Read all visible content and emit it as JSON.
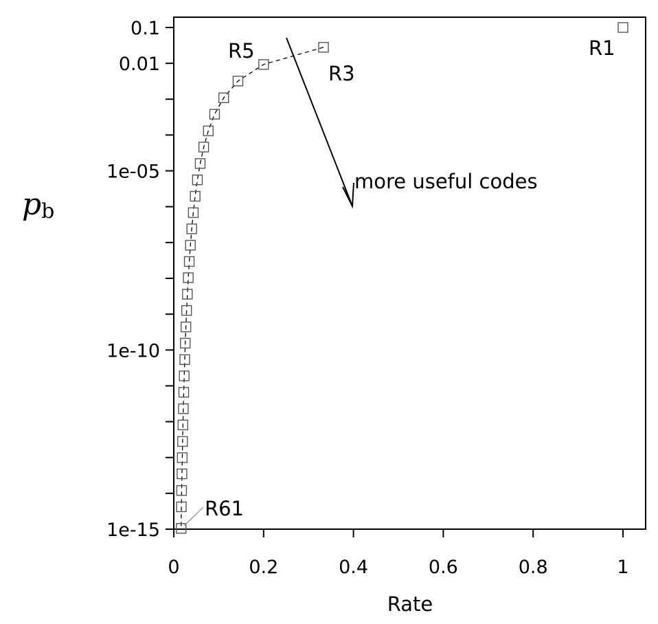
{
  "chart_data": {
    "type": "scatter",
    "xlabel": "Rate",
    "ylabel_main": "p",
    "ylabel_sub": "b",
    "xlim": [
      0,
      1.05
    ],
    "ylim": [
      1e-15,
      0.2
    ],
    "y_scale": "log",
    "grid": false,
    "x_ticks": [
      {
        "value": 0,
        "label": "0"
      },
      {
        "value": 0.2,
        "label": "0.2"
      },
      {
        "value": 0.4,
        "label": "0.4"
      },
      {
        "value": 0.6,
        "label": "0.6"
      },
      {
        "value": 0.8,
        "label": "0.8"
      },
      {
        "value": 1,
        "label": "1"
      }
    ],
    "y_ticks": [
      {
        "value": 0.1,
        "label": "0.1"
      },
      {
        "value": 0.01,
        "label": "0.01"
      },
      {
        "value": 1e-05,
        "label": "1e-05"
      },
      {
        "value": 1e-10,
        "label": "1e-10"
      },
      {
        "value": 1e-15,
        "label": "1e-15"
      }
    ],
    "y_minor_ticks": [
      0.001,
      0.0001,
      1e-06,
      1e-07,
      1e-08,
      1e-09,
      1e-11,
      1e-12,
      1e-13,
      1e-14
    ],
    "series": [
      {
        "style": "dashed-line-with-square-markers",
        "points": [
          {
            "x": 0.3333,
            "y": 0.028
          },
          {
            "x": 0.2,
            "y": 0.0093
          },
          {
            "x": 0.1429,
            "y": 0.0032
          },
          {
            "x": 0.1111,
            "y": 0.00109
          },
          {
            "x": 0.0909,
            "y": 0.00038
          },
          {
            "x": 0.0769,
            "y": 0.00013
          },
          {
            "x": 0.0667,
            "y": 4.6e-05
          },
          {
            "x": 0.0588,
            "y": 1.6e-05
          },
          {
            "x": 0.0526,
            "y": 5.6e-06
          },
          {
            "x": 0.0476,
            "y": 1.95e-06
          },
          {
            "x": 0.0435,
            "y": 6.8e-07
          },
          {
            "x": 0.04,
            "y": 2.4e-07
          },
          {
            "x": 0.037,
            "y": 8.4e-08
          },
          {
            "x": 0.0345,
            "y": 2.95e-08
          },
          {
            "x": 0.0323,
            "y": 1.04e-08
          },
          {
            "x": 0.0303,
            "y": 3.6e-09
          },
          {
            "x": 0.0286,
            "y": 1.27e-09
          },
          {
            "x": 0.027,
            "y": 4.4e-10
          },
          {
            "x": 0.0256,
            "y": 1.55e-10
          },
          {
            "x": 0.0244,
            "y": 5.4e-11
          },
          {
            "x": 0.0233,
            "y": 1.9e-11
          },
          {
            "x": 0.0222,
            "y": 6.6e-12
          },
          {
            "x": 0.0213,
            "y": 2.3e-12
          },
          {
            "x": 0.0204,
            "y": 8.1e-13
          },
          {
            "x": 0.0196,
            "y": 2.8e-13
          },
          {
            "x": 0.0189,
            "y": 9.9e-14
          },
          {
            "x": 0.0182,
            "y": 3.5e-14
          },
          {
            "x": 0.0175,
            "y": 1.2e-14
          },
          {
            "x": 0.0169,
            "y": 4.2e-15
          },
          {
            "x": 0.0164,
            "y": 1.05e-15
          }
        ]
      },
      {
        "style": "square-marker",
        "points": [
          {
            "x": 1,
            "y": 0.1
          }
        ]
      }
    ],
    "annotations": [
      {
        "id": "r1",
        "text": "R1"
      },
      {
        "id": "r3",
        "text": "R3"
      },
      {
        "id": "r5",
        "text": "R5"
      },
      {
        "id": "r61",
        "text": "R61"
      },
      {
        "id": "arrow",
        "text": "more useful codes"
      }
    ]
  }
}
